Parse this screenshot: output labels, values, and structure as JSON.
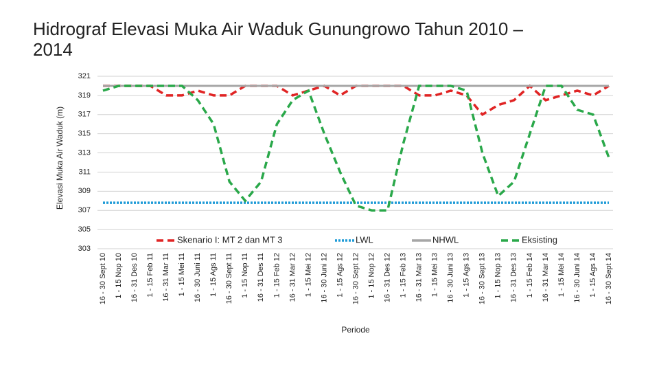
{
  "chart_data": {
    "type": "line",
    "title": "Hidrograf Elevasi Muka Air Waduk Gunungrowo Tahun 2010 – 2014",
    "x_label": "Periode",
    "y_label": "Elevasi Muka Air Waduk (m)",
    "categories": [
      "16 - 30 Sept 10",
      "1 - 15 Nop 10",
      "16 - 31 Des 10",
      "1 - 15 Feb 11",
      "16 - 31 Mar 11",
      "1 - 15 Mei 11",
      "16 - 30 Juni 11",
      "1 - 15 Ags 11",
      "16 - 30 Sept 11",
      "1 - 15 Nop 11",
      "16 - 31 Des 11",
      "1 - 15 Feb 12",
      "16 - 31 Mar 12",
      "1 - 15 Mei 12",
      "16 - 30 Juni 12",
      "1 - 15 Ags 12",
      "16 - 30 Sept 12",
      "1 - 15 Nop 12",
      "16 - 31 Des 12",
      "1 - 15 Feb 13",
      "16 - 31 Mar 13",
      "1 - 15 Mei 13",
      "16 - 30 Juni 13",
      "1 - 15 Ags 13",
      "16 - 30 Sept 13",
      "1 - 15 Nop 13",
      "16 - 31 Des 13",
      "1 - 15 Feb 14",
      "16 - 31 Mar 14",
      "1 - 15 Mei 14",
      "16 - 30 Juni 14",
      "1 - 15 Ags 14",
      "16 - 30 Sept 14"
    ],
    "series": [
      {
        "name": "Skenario I: MT 2 dan MT 3",
        "color": "#e02424",
        "dash": "dash",
        "values": [
          320,
          320,
          320,
          320,
          319,
          319,
          319.5,
          319,
          319,
          320,
          320,
          320,
          319,
          319.5,
          320,
          319,
          320,
          320,
          320,
          320,
          319,
          319,
          319.5,
          319,
          317,
          318,
          318.5,
          320,
          318.5,
          319,
          319.5,
          319,
          320
        ]
      },
      {
        "name": "LWL",
        "color": "#1f9bd7",
        "dash": "dot",
        "values": [
          307.8,
          307.8,
          307.8,
          307.8,
          307.8,
          307.8,
          307.8,
          307.8,
          307.8,
          307.8,
          307.8,
          307.8,
          307.8,
          307.8,
          307.8,
          307.8,
          307.8,
          307.8,
          307.8,
          307.8,
          307.8,
          307.8,
          307.8,
          307.8,
          307.8,
          307.8,
          307.8,
          307.8,
          307.8,
          307.8,
          307.8,
          307.8,
          307.8
        ]
      },
      {
        "name": "NHWL",
        "color": "#a6a6a6",
        "dash": "solid",
        "values": [
          320,
          320,
          320,
          320,
          320,
          320,
          320,
          320,
          320,
          320,
          320,
          320,
          320,
          320,
          320,
          320,
          320,
          320,
          320,
          320,
          320,
          320,
          320,
          320,
          320,
          320,
          320,
          320,
          320,
          320,
          320,
          320,
          320
        ]
      },
      {
        "name": "Eksisting",
        "color": "#2aa84a",
        "dash": "dash",
        "values": [
          319.5,
          320,
          320,
          320,
          320,
          320,
          318.5,
          316,
          310,
          308,
          310,
          316,
          318.5,
          319.5,
          315,
          311,
          307.5,
          307,
          307,
          314,
          320,
          320,
          320,
          319.5,
          313,
          308.5,
          310,
          315,
          320,
          320,
          317.5,
          317,
          312.5
        ]
      }
    ],
    "ylim": [
      303,
      321
    ],
    "yticks": [
      303,
      305,
      307,
      309,
      311,
      313,
      315,
      317,
      319,
      321
    ],
    "grid": true,
    "legend": "inside-bottom"
  }
}
